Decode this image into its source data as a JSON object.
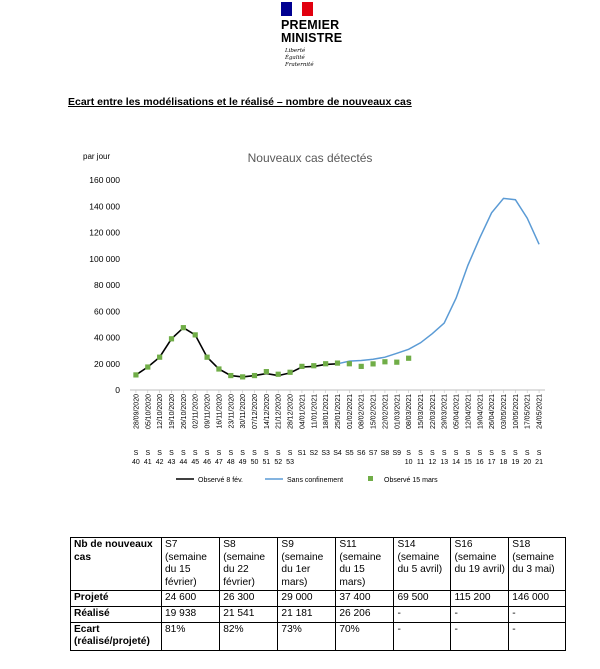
{
  "header": {
    "flag_colors": [
      "#000091",
      "#ffffff",
      "#e1000f"
    ],
    "logo_line1": "PREMIER",
    "logo_line2": "MINISTRE",
    "motto": [
      "Liberté",
      "Égalité",
      "Fraternité"
    ]
  },
  "heading": "Ecart entre les modélisations et le réalisé – nombre de nouveaux cas",
  "chart_data": {
    "type": "line",
    "title": "Nouveaux cas détectés",
    "ylabel": "par jour",
    "ylim": [
      0,
      160000
    ],
    "yticks": [
      "0",
      "20 000",
      "40 000",
      "60 000",
      "80 000",
      "100 000",
      "120 000",
      "140 000",
      "160 000"
    ],
    "x_dates": [
      "28/09/2020",
      "05/10/2020",
      "12/10/2020",
      "19/10/2020",
      "26/10/2020",
      "02/11/2020",
      "09/11/2020",
      "16/11/2020",
      "23/11/2020",
      "30/11/2020",
      "07/12/2020",
      "14/12/2020",
      "21/12/2020",
      "28/12/2020",
      "04/01/2021",
      "11/01/2021",
      "18/01/2021",
      "25/01/2021",
      "01/02/2021",
      "08/02/2021",
      "15/02/2021",
      "22/02/2021",
      "01/03/2021",
      "08/03/2021",
      "15/03/2021",
      "22/03/2021",
      "29/03/2021",
      "05/04/2021",
      "12/04/2021",
      "19/04/2021",
      "26/04/2021",
      "03/05/2021",
      "10/05/2021",
      "17/05/2021",
      "24/05/2021"
    ],
    "x_weeks": [
      "S\n40",
      "S\n41",
      "S\n42",
      "S\n43",
      "S\n44",
      "S\n45",
      "S\n46",
      "S\n47",
      "S\n48",
      "S\n49",
      "S\n50",
      "S\n51",
      "S\n52",
      "S\n53",
      "S1",
      "S2",
      "S3",
      "S4",
      "S5",
      "S6",
      "S7",
      "S8",
      "S9",
      "S\n10",
      "S\n11",
      "S\n12",
      "S\n13",
      "S\n14",
      "S\n15",
      "S\n16",
      "S\n17",
      "S\n18",
      "S\n19",
      "S\n20",
      "S\n21"
    ],
    "series": [
      {
        "name": "Observé 8 fév.",
        "color": "#000000",
        "style": "line",
        "values": [
          11500,
          17500,
          25000,
          39000,
          47500,
          42000,
          25000,
          16000,
          11000,
          10000,
          11000,
          12500,
          11000,
          13000,
          17500,
          18000,
          19500,
          20000,
          null,
          null,
          null,
          null,
          null,
          null,
          null,
          null,
          null,
          null,
          null,
          null,
          null,
          null,
          null,
          null,
          null
        ]
      },
      {
        "name": "Sans confinement",
        "color": "#5b9bd5",
        "style": "line",
        "values": [
          null,
          null,
          null,
          null,
          null,
          null,
          null,
          null,
          null,
          null,
          null,
          null,
          null,
          null,
          null,
          null,
          null,
          20000,
          22000,
          22500,
          23500,
          25000,
          28000,
          31000,
          36000,
          43000,
          51000,
          70000,
          95000,
          116000,
          135000,
          146000,
          145000,
          131000,
          111000
        ]
      },
      {
        "name": "Observé 15 mars",
        "color": "#70ad47",
        "style": "marker",
        "values": [
          11500,
          17500,
          25000,
          39000,
          47500,
          42000,
          25000,
          16000,
          11000,
          10000,
          11000,
          14000,
          12000,
          13500,
          18000,
          18500,
          20000,
          20500,
          20000,
          18000,
          19900,
          21500,
          21200,
          24200,
          null,
          null,
          null,
          null,
          null,
          null,
          null,
          null,
          null,
          null,
          null
        ]
      }
    ]
  },
  "table": {
    "header": [
      "Nb de nouveaux cas",
      "S7 (semaine du 15 février)",
      "S8 (semaine du 22 février)",
      "S9 (semaine du 1er mars)",
      "S11 (semaine du 15 mars)",
      "S14 (semaine du 5 avril)",
      "S16 (semaine du 19 avril)",
      "S18 (semaine du 3 mai)"
    ],
    "rows": [
      [
        "Projeté",
        "24 600",
        "26 300",
        "29 000",
        "37 400",
        "69 500",
        "115 200",
        "146 000"
      ],
      [
        "Réalisé",
        "19 938",
        "21 541",
        "21 181",
        "26 206",
        "-",
        "-",
        "-"
      ],
      [
        "Ecart (réalisé/projeté)",
        "81%",
        "82%",
        "73%",
        "70%",
        "-",
        "-",
        "-"
      ]
    ]
  }
}
